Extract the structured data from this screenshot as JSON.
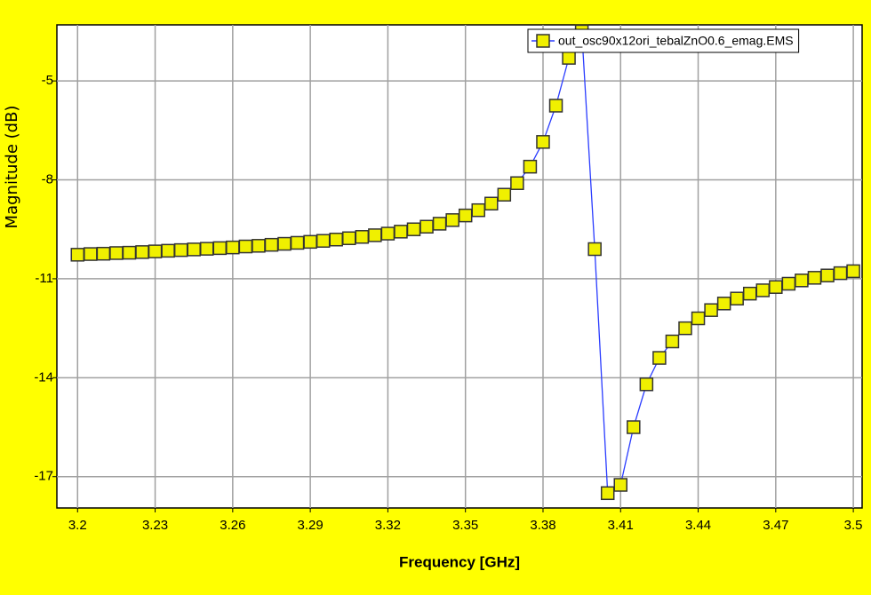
{
  "chart_data": {
    "type": "line",
    "xlabel": "Frequency [GHz]",
    "ylabel": "Magnitude (dB)",
    "x": [
      3.2,
      3.205,
      3.21,
      3.215,
      3.22,
      3.225,
      3.23,
      3.235,
      3.24,
      3.245,
      3.25,
      3.255,
      3.26,
      3.265,
      3.27,
      3.275,
      3.28,
      3.285,
      3.29,
      3.295,
      3.3,
      3.305,
      3.31,
      3.315,
      3.32,
      3.325,
      3.33,
      3.335,
      3.34,
      3.345,
      3.35,
      3.355,
      3.36,
      3.365,
      3.37,
      3.375,
      3.38,
      3.385,
      3.39,
      3.395,
      3.4,
      3.405,
      3.41,
      3.415,
      3.42,
      3.425,
      3.43,
      3.435,
      3.44,
      3.445,
      3.45,
      3.455,
      3.46,
      3.465,
      3.47,
      3.475,
      3.48,
      3.485,
      3.49,
      3.495,
      3.5
    ],
    "series": [
      {
        "name": "out_osc90x12ori_tebalZnO0.6_emag.EMS",
        "color": "#2a3cff",
        "marker_color": "#f0f000",
        "values": [
          -10.27,
          -10.25,
          -10.24,
          -10.22,
          -10.21,
          -10.19,
          -10.17,
          -10.15,
          -10.13,
          -10.11,
          -10.09,
          -10.07,
          -10.05,
          -10.02,
          -10.0,
          -9.97,
          -9.94,
          -9.91,
          -9.88,
          -9.85,
          -9.81,
          -9.77,
          -9.73,
          -9.68,
          -9.63,
          -9.57,
          -9.5,
          -9.42,
          -9.33,
          -9.22,
          -9.08,
          -8.92,
          -8.72,
          -8.45,
          -8.1,
          -7.6,
          -6.85,
          -5.75,
          -4.3,
          -3.5,
          -10.1,
          -17.5,
          -17.25,
          -15.5,
          -14.2,
          -13.4,
          -12.9,
          -12.5,
          -12.2,
          -11.95,
          -11.75,
          -11.6,
          -11.45,
          -11.35,
          -11.25,
          -11.15,
          -11.05,
          -10.97,
          -10.9,
          -10.83,
          -10.77
        ]
      }
    ],
    "xlim": [
      3.192,
      3.5034
    ],
    "ylim": [
      -17.95,
      -3.3
    ],
    "xticks": [
      3.2,
      3.23,
      3.26,
      3.29,
      3.32,
      3.35,
      3.38,
      3.41,
      3.44,
      3.47,
      3.5
    ],
    "yticks": [
      -5,
      -8,
      -11,
      -14,
      -17
    ],
    "grid": true,
    "legend": "top-right"
  }
}
